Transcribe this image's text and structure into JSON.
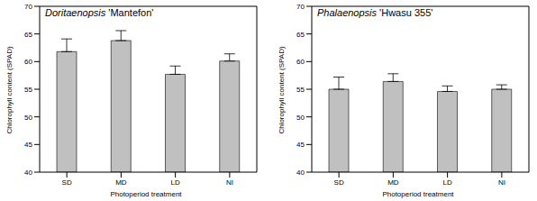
{
  "chart_data": [
    {
      "type": "bar",
      "title": "Doritaenopsis 'Mantefon'",
      "x_label": "Photoperiod treatment",
      "y_label": "Chlorophyll content (SPAD)",
      "categories": [
        "SD",
        "MD",
        "LD",
        "NI"
      ],
      "values": [
        61.8,
        63.8,
        57.7,
        60.1
      ],
      "errors": [
        2.3,
        1.8,
        1.5,
        1.3
      ],
      "color": "#c0c0c0",
      "ylim": [
        40,
        70
      ],
      "yticks": [
        40,
        45,
        50,
        55,
        60,
        65,
        70
      ],
      "grid": false
    },
    {
      "type": "bar",
      "title": "Phalaenopsis 'Hwasu 355'",
      "x_label": "Photoperiod treatment",
      "y_label": "Chlorophyll content (SPAD)",
      "categories": [
        "SD",
        "MD",
        "LD",
        "NI"
      ],
      "values": [
        55.0,
        56.4,
        54.6,
        55.0
      ],
      "errors": [
        2.2,
        1.4,
        1.0,
        0.8
      ],
      "color": "#c0c0c0",
      "ylim": [
        40,
        70
      ],
      "yticks": [
        40,
        45,
        50,
        55,
        60,
        65,
        70
      ],
      "grid": false
    }
  ]
}
